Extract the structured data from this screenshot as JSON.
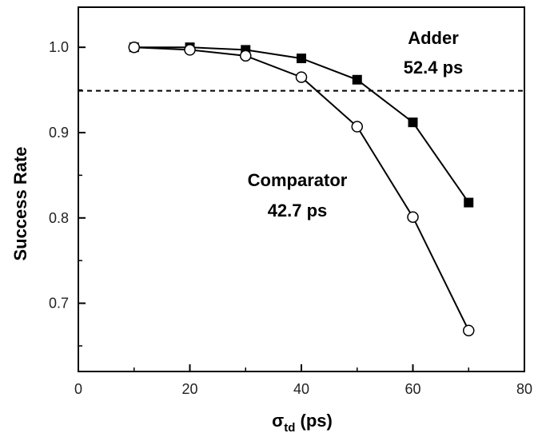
{
  "chart_data": {
    "type": "line",
    "xlabel": "σ",
    "xlabel_sub": "td",
    "xlabel_unit": " (ps)",
    "ylabel": "Success Rate",
    "xlim": [
      0,
      80
    ],
    "ylim": [
      0.62,
      1.047
    ],
    "xticks": [
      0,
      20,
      40,
      60,
      80
    ],
    "yticks": [
      0.7,
      0.8,
      0.9,
      1.0
    ],
    "ytick_labels": [
      "0.7",
      "0.8",
      "0.9",
      "1.0"
    ],
    "grid": false,
    "reference_line": {
      "y": 0.949,
      "style": "dashed"
    },
    "series": [
      {
        "marker": "filled-square",
        "x": [
          10,
          20,
          30,
          40,
          50,
          60,
          70
        ],
        "y": [
          1.0,
          1.0,
          0.997,
          0.987,
          0.962,
          0.912,
          0.818
        ]
      },
      {
        "marker": "open-circle",
        "x": [
          10,
          20,
          30,
          40,
          50,
          60,
          70
        ],
        "y": [
          1.0,
          0.997,
          0.99,
          0.965,
          0.907,
          0.801,
          0.668
        ]
      }
    ],
    "annotations": [
      {
        "text": "Adder",
        "target_series": 0
      },
      {
        "text": "52.4 ps",
        "target_series": 0
      },
      {
        "text": "Comparator",
        "target_series": 1
      },
      {
        "text": "42.7 ps",
        "target_series": 1
      }
    ]
  }
}
